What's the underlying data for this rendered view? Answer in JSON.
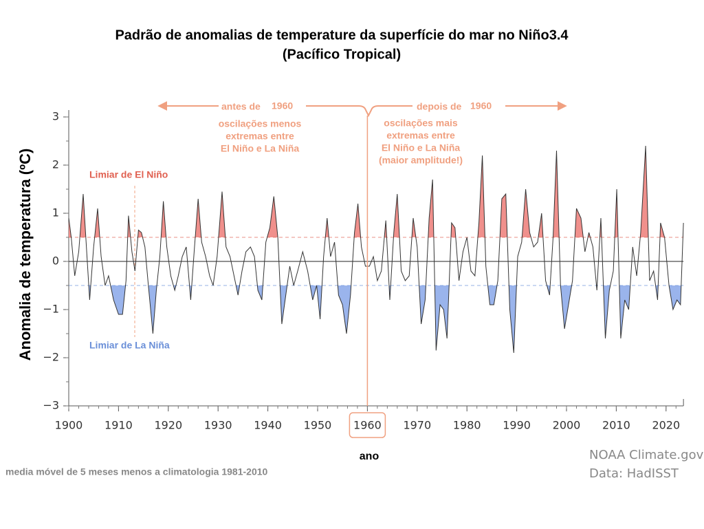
{
  "chart_data": {
    "type": "line",
    "title": "Padrão de anomalias de temperature da superfície do mar no Niño3.4",
    "subtitle": "(Pacífico Tropical)",
    "y_label": "Anomalia de temperatura (ºC)",
    "x_label": "ano",
    "note": "media móvel de 5 meses menos a climatologia 1981-2010",
    "credit": "NOAA Climate.gov",
    "source": "Data: HadISST",
    "xlim": [
      1900,
      2023.5
    ],
    "ylim": [
      -3,
      3
    ],
    "xticks": [
      1900,
      1910,
      1920,
      1930,
      1940,
      1950,
      1960,
      1970,
      1980,
      1990,
      2000,
      2010,
      2020
    ],
    "yticks": [
      3,
      2,
      1,
      0,
      {
        "value": -1,
        "label": "−1"
      },
      {
        "value": -2,
        "label": "−2"
      },
      {
        "value": -3,
        "label": "−3"
      }
    ],
    "thresholds": [
      {
        "name": "Limiar de El Niño",
        "value": 0.5,
        "color": "#e06050",
        "fill": "#f0908c"
      },
      {
        "name": "Limiar de La Niña",
        "value": -0.5,
        "color": "#6a8fd8",
        "fill": "#9ab4ec"
      }
    ],
    "annotations": {
      "before": {
        "prefix": "antes de",
        "year": "1960",
        "lines": [
          "oscilações menos",
          "extremas entre",
          "El Niño e La Niña"
        ]
      },
      "after": {
        "prefix": "depois de",
        "year": "1960",
        "lines": [
          "oscilações mais",
          "extremas entre",
          "El Niño e La Niña",
          "(maior amplitude!)"
        ]
      }
    },
    "highlight_year": 1960,
    "x": [
      1900,
      1900.5,
      1901.2,
      1902,
      1902.9,
      1903.6,
      1904.2,
      1905,
      1905.8,
      1906.5,
      1907.3,
      1908,
      1909,
      1910,
      1910.8,
      1911.5,
      1912,
      1912.7,
      1913.3,
      1914,
      1914.6,
      1915.3,
      1916,
      1916.9,
      1917.6,
      1918.3,
      1919,
      1919.7,
      1920.5,
      1921.3,
      1922,
      1922.8,
      1923.6,
      1924.5,
      1925.2,
      1926,
      1926.7,
      1927.5,
      1928.3,
      1929,
      1929.8,
      1930.8,
      1931.6,
      1932.4,
      1933.2,
      1934,
      1934.8,
      1935.6,
      1936.5,
      1937.3,
      1938,
      1938.8,
      1939.6,
      1940.4,
      1941.2,
      1942,
      1942.8,
      1943.6,
      1944.4,
      1945.2,
      1946,
      1947,
      1948,
      1949,
      1949.8,
      1950.5,
      1951.2,
      1951.9,
      1952.6,
      1953.4,
      1954.2,
      1955,
      1955.8,
      1956.6,
      1957.4,
      1958.1,
      1958.8,
      1959.6,
      1960.4,
      1961.2,
      1962,
      1962.8,
      1963.7,
      1964.5,
      1965.3,
      1966,
      1966.8,
      1967.6,
      1968.4,
      1969.2,
      1970,
      1970.8,
      1971.6,
      1972.4,
      1973.1,
      1973.8,
      1974.6,
      1975.3,
      1976,
      1976.9,
      1977.6,
      1978.4,
      1979.2,
      1980,
      1980.8,
      1981.6,
      1982.4,
      1983.1,
      1983.8,
      1984.6,
      1985.4,
      1986.2,
      1987,
      1987.8,
      1988.6,
      1989.4,
      1990.2,
      1991,
      1991.8,
      1992.6,
      1993.4,
      1994.2,
      1995,
      1995.8,
      1996.6,
      1997.3,
      1998,
      1998.8,
      1999.6,
      2000.4,
      2001.2,
      2002,
      2002.9,
      2003.7,
      2004.5,
      2005.3,
      2006.1,
      2006.9,
      2007.8,
      2008.6,
      2009.4,
      2010.1,
      2010.9,
      2011.7,
      2012.5,
      2013.3,
      2014.1,
      2014.9,
      2015.9,
      2016.7,
      2017.5,
      2018.3,
      2018.9,
      2019.7,
      2020.6,
      2021.4,
      2022.2,
      2022.9,
      2023.5
    ],
    "series": [
      {
        "name": "Niño3.4",
        "color": "#333333",
        "values": [
          0.9,
          0.5,
          -0.3,
          0.2,
          1.4,
          0.2,
          -0.8,
          0.3,
          1.1,
          0.1,
          -0.5,
          -0.3,
          -0.8,
          -1.1,
          -1.1,
          -0.4,
          0.95,
          0.2,
          -0.2,
          0.65,
          0.6,
          0.3,
          -0.5,
          -1.5,
          -0.6,
          0.1,
          1.25,
          0.3,
          -0.3,
          -0.6,
          -0.3,
          0.1,
          0.3,
          -0.8,
          0.2,
          1.3,
          0.4,
          0.1,
          -0.3,
          -0.5,
          0.1,
          1.45,
          0.3,
          0.1,
          -0.3,
          -0.7,
          -0.2,
          0.2,
          0.3,
          0.1,
          -0.6,
          -0.8,
          0.4,
          0.7,
          1.35,
          0.5,
          -1.3,
          -0.7,
          -0.1,
          -0.5,
          -0.2,
          0.2,
          -0.2,
          -0.8,
          -0.5,
          -1.2,
          0.1,
          0.9,
          0.1,
          0.4,
          -0.7,
          -0.9,
          -1.5,
          -0.7,
          0.6,
          1.2,
          0.3,
          -0.1,
          -0.1,
          0.1,
          -0.4,
          -0.2,
          0.85,
          -0.8,
          0.6,
          1.4,
          -0.2,
          -0.4,
          -0.3,
          0.9,
          0.3,
          -1.3,
          -0.8,
          0.9,
          1.7,
          -1.85,
          -0.9,
          -1.0,
          -1.6,
          0.8,
          0.7,
          -0.4,
          0.2,
          0.5,
          -0.2,
          -0.3,
          0.8,
          2.2,
          -0.1,
          -0.9,
          -0.9,
          -0.4,
          1.3,
          1.4,
          -1.0,
          -1.9,
          0.1,
          0.4,
          1.5,
          0.6,
          0.3,
          0.4,
          1.0,
          -0.4,
          -0.7,
          0.5,
          2.3,
          -0.5,
          -1.4,
          -0.9,
          -0.4,
          1.1,
          0.9,
          0.2,
          0.6,
          0.3,
          -0.6,
          0.9,
          -1.6,
          -0.6,
          -0.2,
          1.5,
          -1.6,
          -0.8,
          -1.0,
          0.3,
          -0.3,
          0.6,
          2.4,
          -0.4,
          -0.2,
          -0.8,
          0.8,
          0.5,
          -0.5,
          -1.0,
          -0.8,
          -0.9,
          0.8
        ]
      }
    ]
  }
}
